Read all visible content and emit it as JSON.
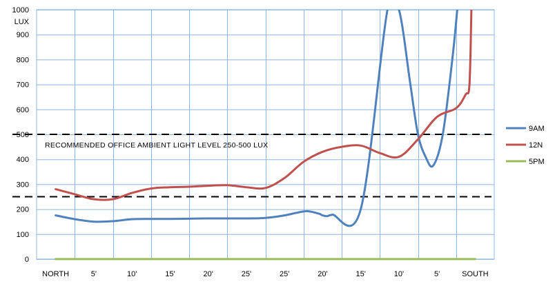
{
  "chart_data": {
    "type": "line",
    "title": "",
    "xlabel": "",
    "ylabel": "LUX",
    "ylim": [
      0,
      1000
    ],
    "ytick_step": 100,
    "categories": [
      "NORTH",
      "5'",
      "10'",
      "15'",
      "20'",
      "25'",
      "25'",
      "20'",
      "15'",
      "10'",
      "5'",
      "SOUTH"
    ],
    "series": [
      {
        "name": "9AM",
        "color": "#4F81BD",
        "x": [
          0,
          0.5,
          1,
          1.5,
          2,
          2.5,
          3,
          3.5,
          4,
          4.5,
          5,
          5.5,
          6,
          6.3,
          6.6,
          6.9,
          7.0,
          7.12,
          7.25,
          8.0,
          8.7,
          9.0,
          9.3,
          9.5,
          9.7,
          9.9,
          10.15,
          10.4,
          10.53
        ],
        "values": [
          175,
          160,
          150,
          152,
          160,
          161,
          161,
          162,
          163,
          163,
          163,
          165,
          175,
          185,
          192,
          182,
          175,
          172,
          178,
          200,
          1000,
          1000,
          700,
          500,
          410,
          375,
          500,
          800,
          1000
        ]
      },
      {
        "name": "12N",
        "color": "#C0504D",
        "x": [
          0,
          0.5,
          1,
          1.5,
          2,
          2.5,
          3,
          3.5,
          4,
          4.5,
          5,
          5.5,
          6,
          6.5,
          7,
          7.5,
          8,
          8.5,
          9,
          9.5,
          10,
          10.5,
          10.75,
          10.85,
          10.9
        ],
        "values": [
          280,
          260,
          240,
          240,
          265,
          283,
          288,
          290,
          294,
          296,
          288,
          285,
          325,
          390,
          430,
          450,
          455,
          425,
          410,
          480,
          570,
          605,
          660,
          700,
          1000
        ]
      },
      {
        "name": "5PM",
        "color": "#9BBB59",
        "x": [
          0,
          11
        ],
        "values": [
          0,
          0
        ]
      }
    ],
    "reference_lines": [
      {
        "value": 500,
        "style": "dashed"
      },
      {
        "value": 250,
        "style": "dashed"
      }
    ],
    "annotation": "RECOMMENDED  OFFICE  AMBIENT  LIGHT LEVEL  250-500 LUX",
    "grid": true,
    "legend": "right"
  }
}
